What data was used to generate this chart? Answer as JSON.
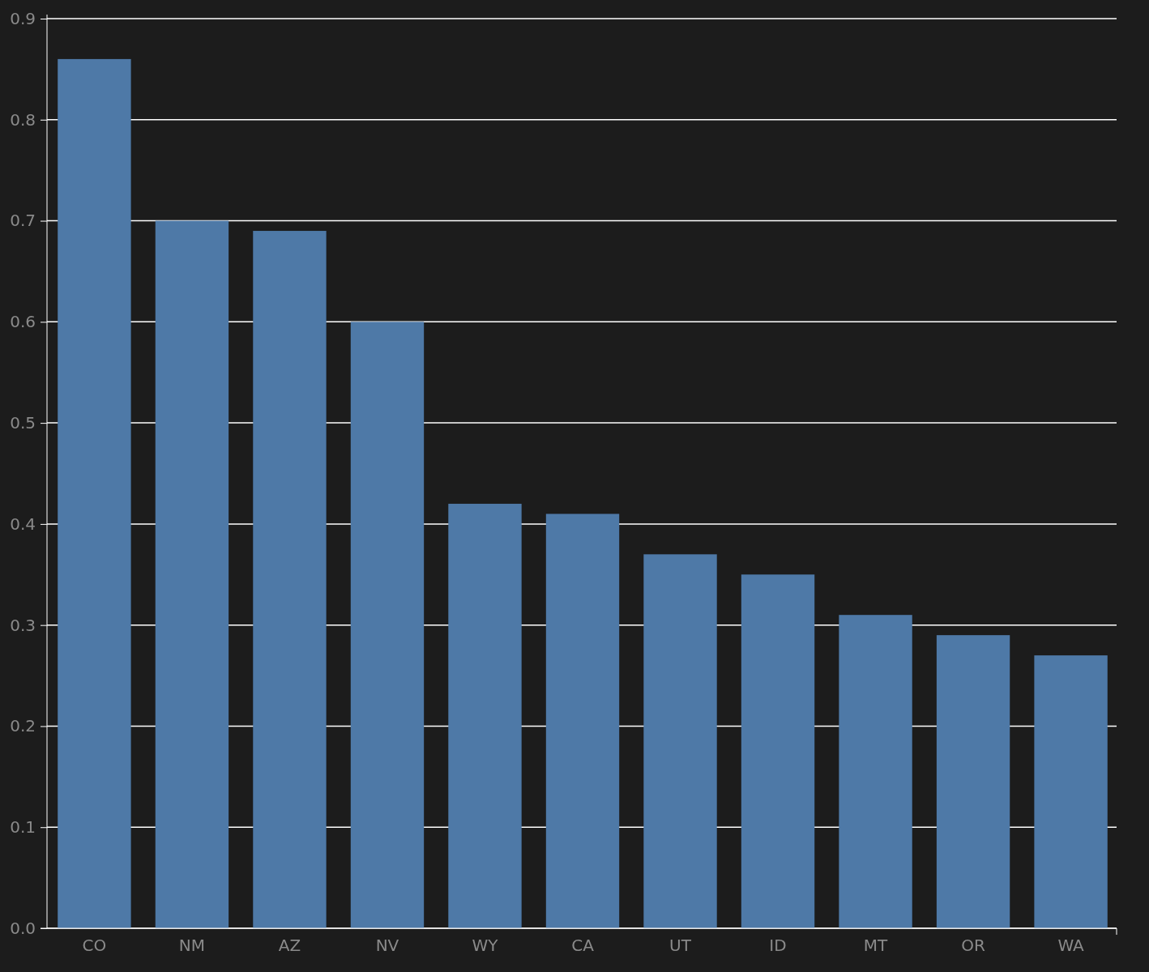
{
  "chart_data": {
    "type": "bar",
    "categories": [
      "CO",
      "NM",
      "AZ",
      "NV",
      "WY",
      "CA",
      "UT",
      "ID",
      "MT",
      "OR",
      "WA"
    ],
    "values": [
      0.86,
      0.7,
      0.69,
      0.6,
      0.42,
      0.41,
      0.37,
      0.35,
      0.31,
      0.29,
      0.27
    ],
    "color": "#4e79a7",
    "ylim": [
      0,
      0.9
    ],
    "yticks": [
      {
        "value": 0,
        "label": "0.0"
      },
      0.1,
      0.2,
      0.3,
      0.4,
      0.5,
      0.6,
      0.7,
      0.8,
      0.9
    ],
    "grid": "y"
  }
}
